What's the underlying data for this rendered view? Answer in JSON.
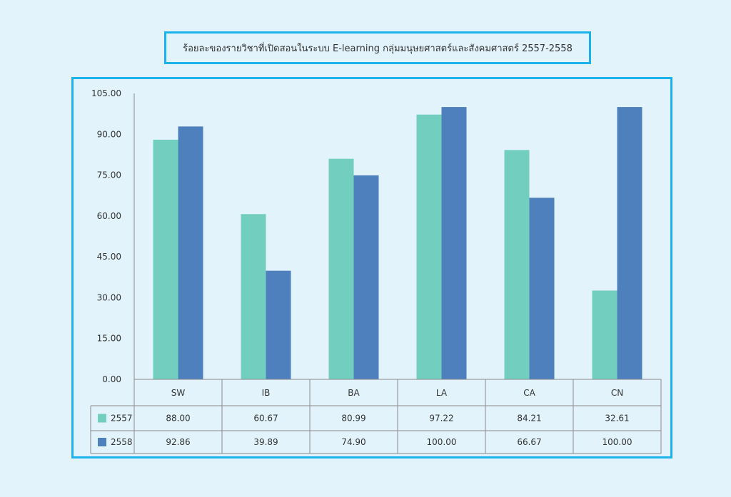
{
  "chart_data": {
    "type": "bar",
    "title": "ร้อยละของรายวิชาที่เปิดสอนในระบบ E-learning  กลุ่มมนุษยศาสตร์และสังคมศาสตร์ 2557-2558",
    "categories": [
      "SW",
      "IB",
      "BA",
      "LA",
      "CA",
      "CN"
    ],
    "series": [
      {
        "name": "2557",
        "color": "#72cfbf",
        "values": [
          88.0,
          60.67,
          80.99,
          97.22,
          84.21,
          32.61
        ],
        "labels": [
          "88.00",
          "60.67",
          "80.99",
          "97.22",
          "84.21",
          "32.61"
        ]
      },
      {
        "name": "2558",
        "color": "#4e80bd",
        "values": [
          92.86,
          39.89,
          74.9,
          100.0,
          66.67,
          100.0
        ],
        "labels": [
          "92.86",
          "39.89",
          "74.90",
          "100.00",
          "66.67",
          "100.00"
        ]
      }
    ],
    "yticks": [
      "0.00",
      "15.00",
      "30.00",
      "45.00",
      "60.00",
      "75.00",
      "90.00",
      "105.00"
    ],
    "ylim": [
      0,
      105
    ],
    "legend": "data-table",
    "xlabel": "",
    "ylabel": ""
  }
}
